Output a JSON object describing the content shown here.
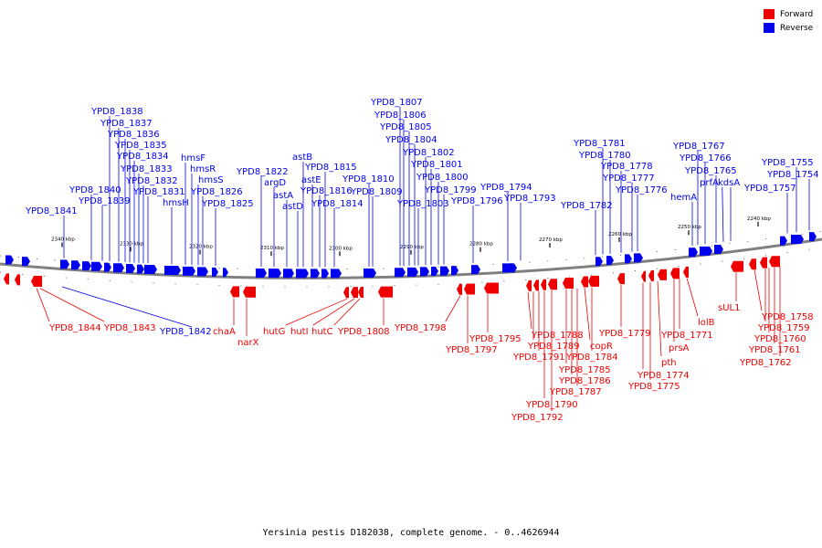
{
  "colors": {
    "forward": "#ee0000",
    "reverse": "#0000ee",
    "backbone": "#808080",
    "ticks": "#000000"
  },
  "legend": [
    {
      "label": "Forward",
      "color": "#ee0000"
    },
    {
      "label": "Reverse",
      "color": "#0000ee"
    }
  ],
  "caption": "Yersinia pestis D182038, complete genome. - 0..4626944",
  "scale_ticks": [
    "2340 kbp",
    "2330 kbp",
    "2320 kbp",
    "2310 kbp",
    "2300 kbp",
    "2290 kbp",
    "2280 kbp",
    "2270 kbp",
    "2260 kbp",
    "2250 kbp",
    "2240 kbp"
  ],
  "reverse_labels": [
    "YPD8_1841",
    "YPD8_1840",
    "YPD8_1839",
    "YPD8_1838",
    "YPD8_1837",
    "YPD8_1836",
    "YPD8_1835",
    "YPD8_1834",
    "YPD8_1833",
    "YPD8_1832",
    "YPD8_1831",
    "hmsH",
    "hmsF",
    "hmsR",
    "hmsS",
    "YPD8_1826",
    "YPD8_1825",
    "YPD8_1822",
    "argD",
    "astA",
    "astD",
    "astB",
    "astE",
    "YPD8_1816",
    "YPD8_1815",
    "YPD8_1814",
    "YPD8_1810",
    "YPD8_1809",
    "YPD8_1807",
    "YPD8_1806",
    "YPD8_1805",
    "YPD8_1804",
    "YPD8_1803",
    "YPD8_1802",
    "YPD8_1801",
    "YPD8_1800",
    "YPD8_1799",
    "YPD8_1796",
    "YPD8_1794",
    "YPD8_1793",
    "YPD8_1782",
    "YPD8_1781",
    "YPD8_1780",
    "YPD8_1778",
    "YPD8_1777",
    "YPD8_1776",
    "YPD8_1767",
    "YPD8_1766",
    "hemA",
    "YPD8_1765",
    "prfA",
    "kdsA",
    "YPD8_1757",
    "YPD8_1755",
    "YPD8_1754"
  ],
  "forward_labels": [
    "YPD8_1844",
    "YPD8_1843",
    "chaA",
    "narX",
    "hutG",
    "hutI",
    "hutC",
    "YPD8_1808",
    "YPD8_1798",
    "YPD8_1797",
    "YPD8_1795",
    "YPD8_1788",
    "YPD8_1789",
    "YPD8_1791",
    "YPD8_1790",
    "YPD8_1792",
    "YPD8_1785",
    "YPD8_1786",
    "YPD8_1787",
    "copR",
    "YPD8_1784",
    "YPD8_1779",
    "YPD8_1774",
    "YPD8_1775",
    "pth",
    "prsA",
    "YPD8_1771",
    "lolB",
    "sUL1",
    "YPD8_1758",
    "YPD8_1759",
    "YPD8_1760",
    "YPD8_1761",
    "YPD8_1762"
  ],
  "extra_blue_label": "YPD8_1842"
}
